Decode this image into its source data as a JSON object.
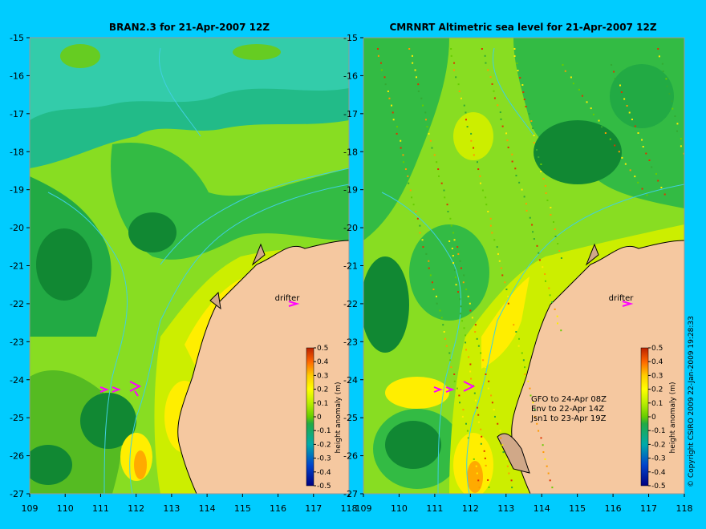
{
  "left_panel": {
    "title": "BRAN2.3 for 21-Apr-2007 12Z",
    "drifter_label": "drifter"
  },
  "right_panel": {
    "title": "CMRNRT Altimetric sea level  for 21-Apr-2007 12Z",
    "drifter_label": "drifter",
    "satellite_info": [
      "GFO to 24-Apr 08Z",
      "Env to 22-Apr 14Z",
      "Jsn1 to 23-Apr 19Z"
    ]
  },
  "y_tick_labels": [
    "-15",
    "-16",
    "-17",
    "-18",
    "-19",
    "-20",
    "-21",
    "-22",
    "-23",
    "-24",
    "-25",
    "-26",
    "-27"
  ],
  "x_tick_labels": [
    "109",
    "110",
    "111",
    "112",
    "113",
    "114",
    "115",
    "116",
    "117",
    "118"
  ],
  "colorbar": {
    "label": "height anomaly (m)",
    "tick_labels": [
      "0.5",
      "0.4",
      "0.3",
      "0.2",
      "0.1",
      "0",
      "-0.1",
      "-0.2",
      "-0.3",
      "-0.4",
      "-0.5"
    ]
  },
  "copyright": "© Copyright CSIRO 2009   22-Jan-2009 19:28:33",
  "colors": {
    "background": "#00ccff",
    "land": "#f5c8a0",
    "coast_outline": "#000000",
    "isobath": "#40d0e0",
    "drifter_marker": "#ff00ff",
    "anomaly_low": "#00008b",
    "anomaly_zero": "#66cc00",
    "anomaly_high": "#b22222"
  }
}
